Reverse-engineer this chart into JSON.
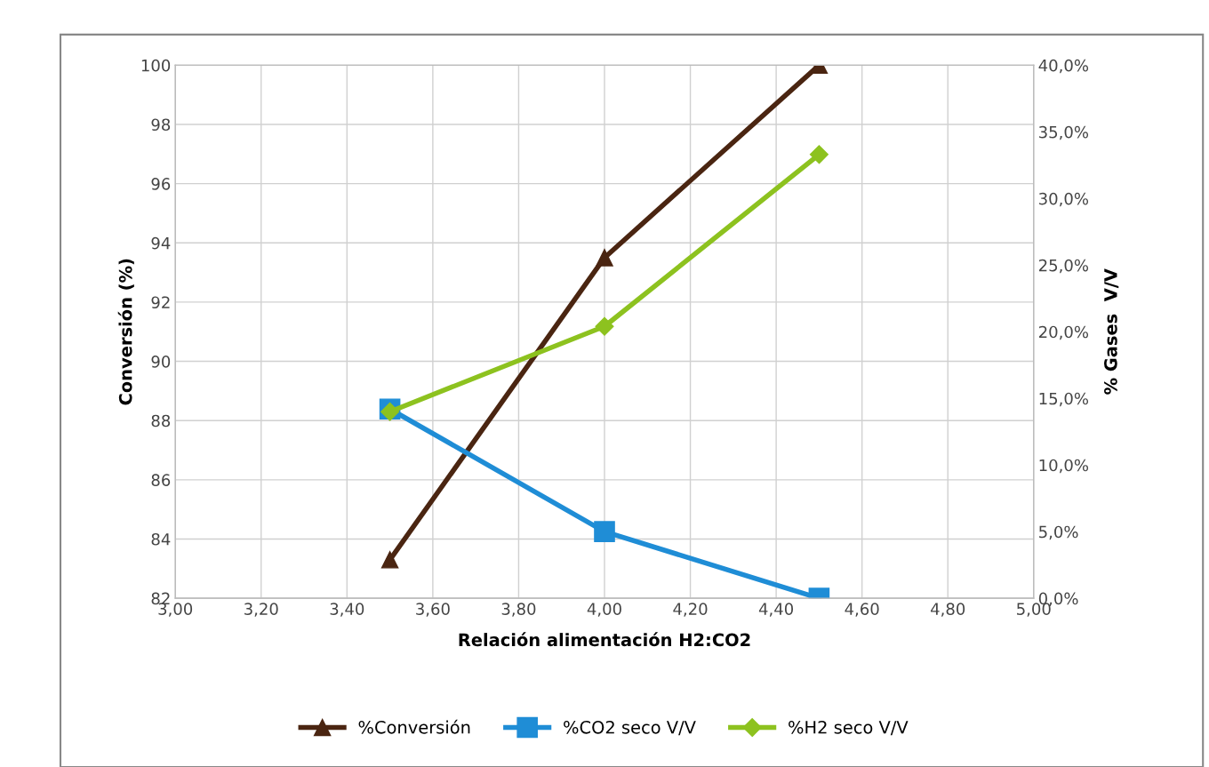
{
  "chart_data": {
    "type": "line",
    "xlabel": "Relación alimentación H2:CO2",
    "ylabel": "Conversión (%)",
    "y2label": "% Gases  V/V",
    "xlim": [
      3,
      5
    ],
    "xticks": [
      {
        "value": 3,
        "label": "3,00"
      },
      {
        "value": 3.2,
        "label": "3,20"
      },
      {
        "value": 3.4,
        "label": "3,40"
      },
      {
        "value": 3.6,
        "label": "3,60"
      },
      {
        "value": 3.8,
        "label": "3,80"
      },
      {
        "value": 4,
        "label": "4,00"
      },
      {
        "value": 4.2,
        "label": "4,20"
      },
      {
        "value": 4.4,
        "label": "4,40"
      },
      {
        "value": 4.6,
        "label": "4,60"
      },
      {
        "value": 4.8,
        "label": "4,80"
      },
      {
        "value": 5,
        "label": "5,00"
      }
    ],
    "ylim": [
      82,
      100
    ],
    "yticks": [
      82,
      84,
      86,
      88,
      90,
      92,
      94,
      96,
      98,
      100
    ],
    "y2lim": [
      0,
      40
    ],
    "y2ticks": [
      {
        "value": 0,
        "label": "0,0%"
      },
      {
        "value": 5,
        "label": "5,0%"
      },
      {
        "value": 10,
        "label": "10,0%"
      },
      {
        "value": 15,
        "label": "15,0%"
      },
      {
        "value": 20,
        "label": "20,0%"
      },
      {
        "value": 25,
        "label": "25,0%"
      },
      {
        "value": 30,
        "label": "30,0%"
      },
      {
        "value": 35,
        "label": "35,0%"
      },
      {
        "value": 40,
        "label": "40,0%"
      }
    ],
    "x": [
      3.5,
      4.0,
      4.5
    ],
    "grid": true,
    "legend": "bottom",
    "series": [
      {
        "name": "%Conversión",
        "color": "#4a2511",
        "values": [
          83.3,
          93.5,
          100
        ],
        "marker": "triangle"
      },
      {
        "name": "%CO2 seco V/V",
        "color": "#1f8dd6",
        "values": [
          14.2,
          5.0,
          0.0
        ],
        "marker": "square",
        "axis": "y2"
      },
      {
        "name": "%H2 seco V/V",
        "color": "#8dc21f",
        "values": [
          14.0,
          20.4,
          33.3
        ],
        "marker": "diamond",
        "axis": "y2"
      }
    ]
  }
}
